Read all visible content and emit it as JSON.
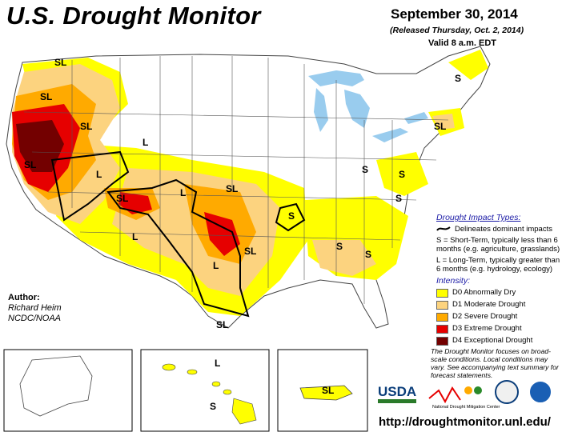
{
  "header": {
    "title": "U.S. Drought Monitor",
    "date": "September 30, 2014",
    "released": "(Released Thursday, Oct. 2, 2014)",
    "valid": "Valid 8 a.m. EDT"
  },
  "author": {
    "heading": "Author:",
    "name": "Richard Heim",
    "org": "NCDC/NOAA"
  },
  "legend": {
    "impact_heading": "Drought Impact Types:",
    "delineates": "Delineates dominant impacts",
    "short_term": "S = Short-Term, typically less than 6 months (e.g. agriculture, grasslands)",
    "long_term": "L = Long-Term, typically greater than 6 months (e.g. hydrology, ecology)",
    "intensity_heading": "Intensity:",
    "levels": [
      {
        "label": "D0 Abnormally Dry",
        "color": "#ffff00"
      },
      {
        "label": "D1 Moderate Drought",
        "color": "#fcd37f"
      },
      {
        "label": "D2 Severe Drought",
        "color": "#ffaa00"
      },
      {
        "label": "D3 Extreme Drought",
        "color": "#e60000"
      },
      {
        "label": "D4 Exceptional Drought",
        "color": "#730000"
      }
    ],
    "note": "The Drought Monitor focuses on broad-scale conditions. Local conditions may vary. See accompanying text summary for forecast statements."
  },
  "map_labels": {
    "sl": "SL",
    "s": "S",
    "l": "L"
  },
  "logos": {
    "usda": "USDA",
    "ndmc": "National Drought Mitigation Center"
  },
  "colors": {
    "water": "#99ccee",
    "state_line": "#555555",
    "impact_line": "#000000"
  },
  "footer": {
    "url": "http://droughtmonitor.unl.edu/"
  }
}
